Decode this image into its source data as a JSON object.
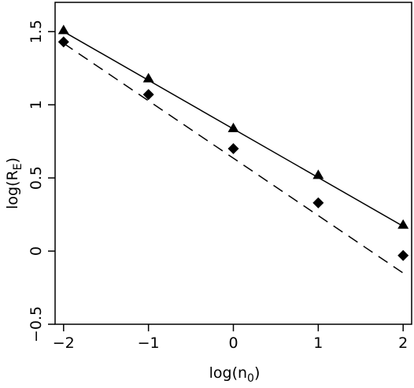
{
  "chart_data": {
    "type": "scatter",
    "xlabel": "log(n",
    "xlabel_sub": "0",
    "xlabel_close": ")",
    "ylabel": "log(R",
    "ylabel_sub": "E",
    "ylabel_close": ")",
    "xlim": [
      -2.1,
      2.1
    ],
    "ylim": [
      -0.5,
      1.7
    ],
    "xticks": [
      -2,
      -1,
      0,
      1,
      2
    ],
    "xtick_labels": [
      "−2",
      "−1",
      "0",
      "1",
      "2"
    ],
    "yticks": [
      -0.5,
      0,
      0.5,
      1,
      1.5
    ],
    "ytick_labels": [
      "−0.5",
      "0",
      "0.5",
      "1",
      "1.5"
    ],
    "grid": false,
    "series": [
      {
        "marker": "triangle",
        "x": [
          -2,
          -1,
          0,
          1,
          2
        ],
        "y": [
          1.51,
          1.18,
          0.84,
          0.52,
          0.18
        ],
        "fit_line": {
          "style": "solid",
          "x": [
            -2,
            2
          ],
          "y": [
            1.5,
            0.17
          ]
        }
      },
      {
        "marker": "diamond",
        "x": [
          -2,
          -1,
          0,
          1,
          2
        ],
        "y": [
          1.43,
          1.07,
          0.7,
          0.33,
          -0.03
        ],
        "fit_line": {
          "style": "dashed",
          "x": [
            -2,
            2
          ],
          "y": [
            1.42,
            -0.15
          ]
        }
      }
    ]
  }
}
